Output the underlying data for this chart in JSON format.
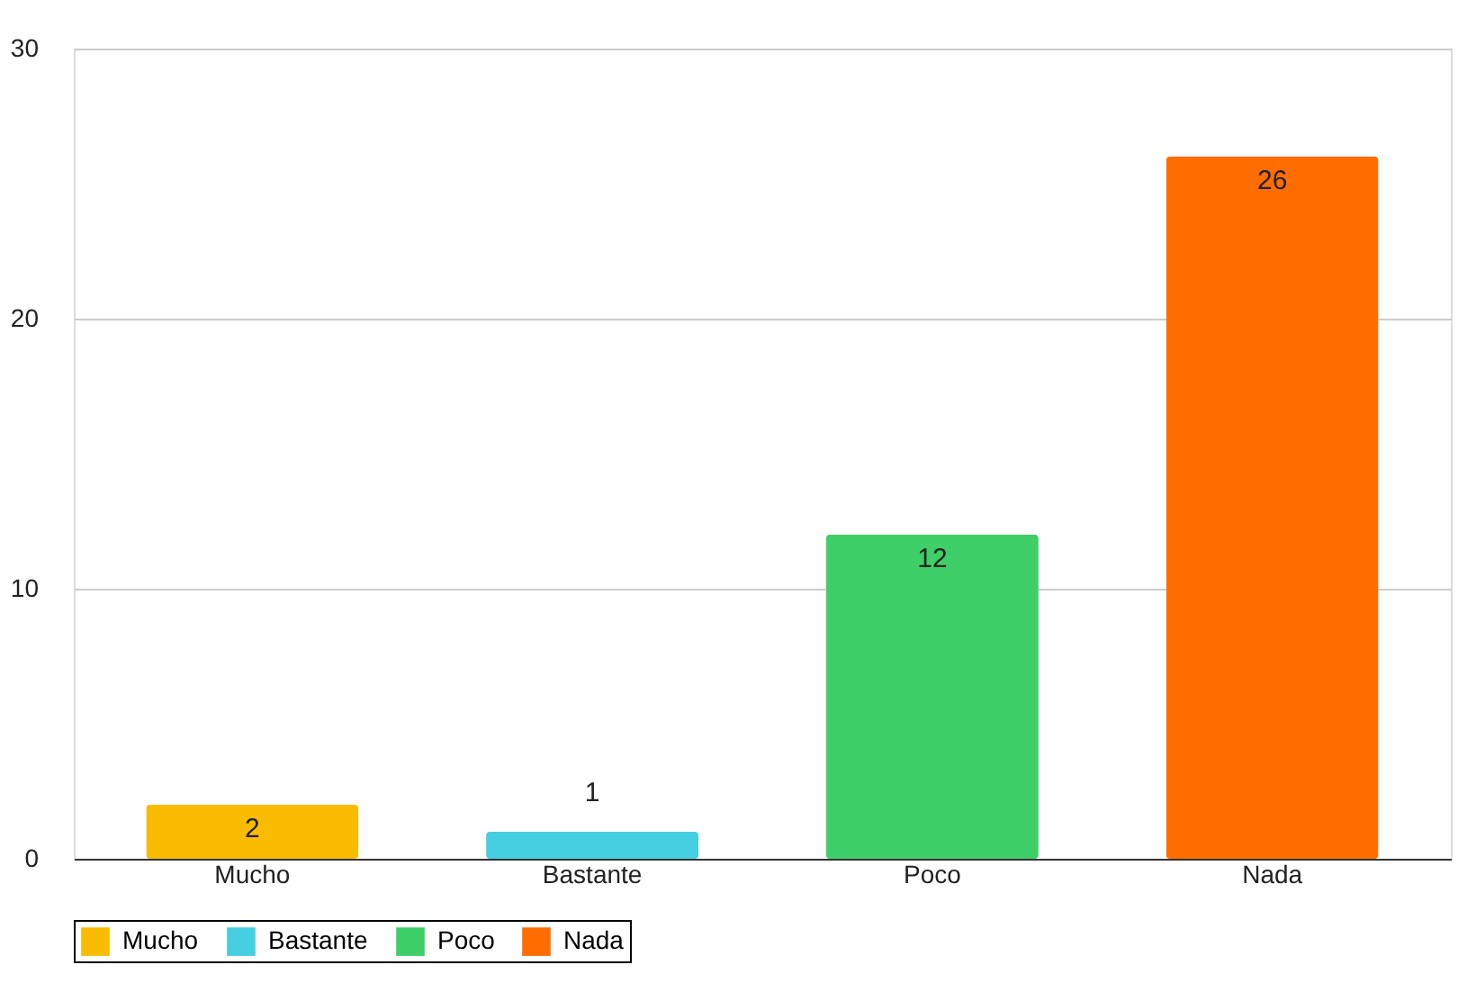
{
  "chart_data": {
    "type": "bar",
    "categories": [
      "Mucho",
      "Bastante",
      "Poco",
      "Nada"
    ],
    "series": [
      {
        "name": "Mucho",
        "color": "#f9bc00",
        "values": [
          2,
          null,
          null,
          null
        ]
      },
      {
        "name": "Bastante",
        "color": "#46cfe0",
        "values": [
          null,
          1,
          null,
          null
        ]
      },
      {
        "name": "Poco",
        "color": "#3ecf68",
        "values": [
          null,
          null,
          12,
          null
        ]
      },
      {
        "name": "Nada",
        "color": "#ff6d00",
        "values": [
          null,
          null,
          null,
          26
        ]
      }
    ],
    "ylim": [
      0,
      30
    ],
    "yticks": [
      0,
      10,
      20,
      30
    ],
    "grid": "y",
    "legend": "bottom",
    "data_labels": true
  }
}
